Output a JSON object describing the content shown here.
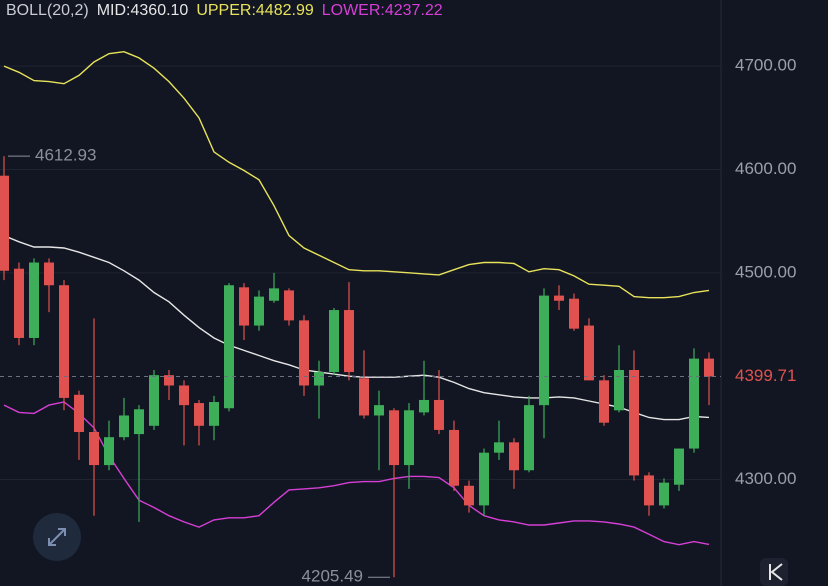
{
  "chart_data": {
    "type": "candlestick",
    "indicator": "BOLL(20,2)",
    "up_color": "#3fae5a",
    "down_color": "#e0524f",
    "ylim": [
      4197,
      4764
    ],
    "yticks": [
      {
        "value": 4700,
        "label": "4700.00"
      },
      {
        "value": 4600,
        "label": "4600.00"
      },
      {
        "value": 4500,
        "label": "4500.00"
      },
      {
        "value": 4300,
        "label": "4300.00"
      }
    ],
    "grid": true,
    "open": [
      4594,
      4504,
      4437,
      4510,
      4488,
      4382,
      4346,
      4314,
      4341,
      4344,
      4352,
      4401,
      4391,
      4374,
      4352,
      4369,
      4486,
      4449,
      4473,
      4483,
      4454,
      4391,
      4404,
      4464,
      4398,
      4362,
      4367,
      4314,
      4365,
      4377,
      4348,
      4294,
      4275,
      4326,
      4336,
      4309,
      4372,
      4478,
      4475,
      4449,
      4396,
      4367,
      4406,
      4304,
      4275,
      4295,
      4330,
      4417
    ],
    "high": [
      4612.93,
      4510,
      4514,
      4514,
      4493,
      4386,
      4456,
      4357,
      4379,
      4372,
      4406,
      4406,
      4396,
      4377,
      4381,
      4490,
      4490,
      4483,
      4500,
      4485,
      4459,
      4415,
      4466,
      4491,
      4425,
      4386,
      4369,
      4374,
      4415,
      4406,
      4357,
      4299,
      4330,
      4357,
      4340,
      4381,
      4485,
      4488,
      4480,
      4456,
      4401,
      4430,
      4425,
      4307,
      4301,
      4330,
      4427,
      4423
    ],
    "low": [
      4493,
      4430,
      4430,
      4462,
      4367,
      4319,
      4265,
      4309,
      4338,
      4259,
      4348,
      4377,
      4333,
      4333,
      4338,
      4366,
      4435,
      4444,
      4471,
      4449,
      4381,
      4359,
      4401,
      4396,
      4359,
      4309,
      4205.49,
      4291,
      4362,
      4344,
      4289,
      4268,
      4265,
      4319,
      4291,
      4307,
      4340,
      4464,
      4444,
      4396,
      4352,
      4365,
      4299,
      4265,
      4272,
      4289,
      4326,
      4372
    ],
    "close": [
      4502,
      4437,
      4510,
      4488,
      4379,
      4346,
      4314,
      4341,
      4362,
      4368,
      4401,
      4391,
      4372,
      4352,
      4375,
      4488,
      4449,
      4477,
      4485,
      4454,
      4391,
      4404,
      4464,
      4404,
      4362,
      4372,
      4314,
      4367,
      4377,
      4348,
      4294,
      4275,
      4326,
      4336,
      4309,
      4372,
      4478,
      4473,
      4446,
      4396,
      4355,
      4406,
      4304,
      4275,
      4297,
      4330,
      4417,
      4399.71
    ],
    "series": [
      {
        "name": "MID:4360.10",
        "color": "#e6e6e6",
        "values": [
          4536,
          4530,
          4525,
          4525,
          4524,
          4520,
          4515,
          4510,
          4502,
          4493,
          4481,
          4472,
          4459,
          4447,
          4437,
          4430,
          4425,
          4420,
          4415,
          4411,
          4406,
          4404,
          4402,
          4400,
          4399,
          4399,
          4399,
          4400,
          4401,
          4399,
          4394,
          4388,
          4384,
          4382,
          4380,
          4379,
          4379,
          4380,
          4379,
          4376,
          4373,
          4370,
          4365,
          4360,
          4358,
          4358,
          4361,
          4360.1
        ]
      },
      {
        "name": "UPPER:4482.99",
        "color": "#e8e35a",
        "values": [
          4700,
          4694,
          4686,
          4685,
          4683,
          4691,
          4704,
          4712,
          4714,
          4708,
          4698,
          4685,
          4669,
          4650,
          4617,
          4607,
          4599,
          4590,
          4565,
          4536,
          4524,
          4517,
          4510,
          4503,
          4502,
          4502,
          4501,
          4500,
          4499,
          4498,
          4503,
          4508,
          4510,
          4510,
          4509,
          4501,
          4504,
          4503,
          4497,
          4489,
          4488,
          4487,
          4477,
          4476,
          4476,
          4477,
          4481,
          4482.99
        ]
      },
      {
        "name": "LOWER:4237.22",
        "color": "#d63fd6",
        "values": [
          4372,
          4365,
          4364,
          4372,
          4375,
          4364,
          4350,
          4323,
          4301,
          4280,
          4273,
          4265,
          4259,
          4254,
          4261,
          4263,
          4263,
          4265,
          4278,
          4290,
          4291,
          4292,
          4294,
          4297,
          4298,
          4298,
          4301,
          4303,
          4303,
          4302,
          4292,
          4275,
          4265,
          4261,
          4259,
          4256,
          4256,
          4258,
          4260,
          4260,
          4259,
          4257,
          4254,
          4247,
          4240,
          4237,
          4240,
          4237.22
        ]
      }
    ]
  }
}
